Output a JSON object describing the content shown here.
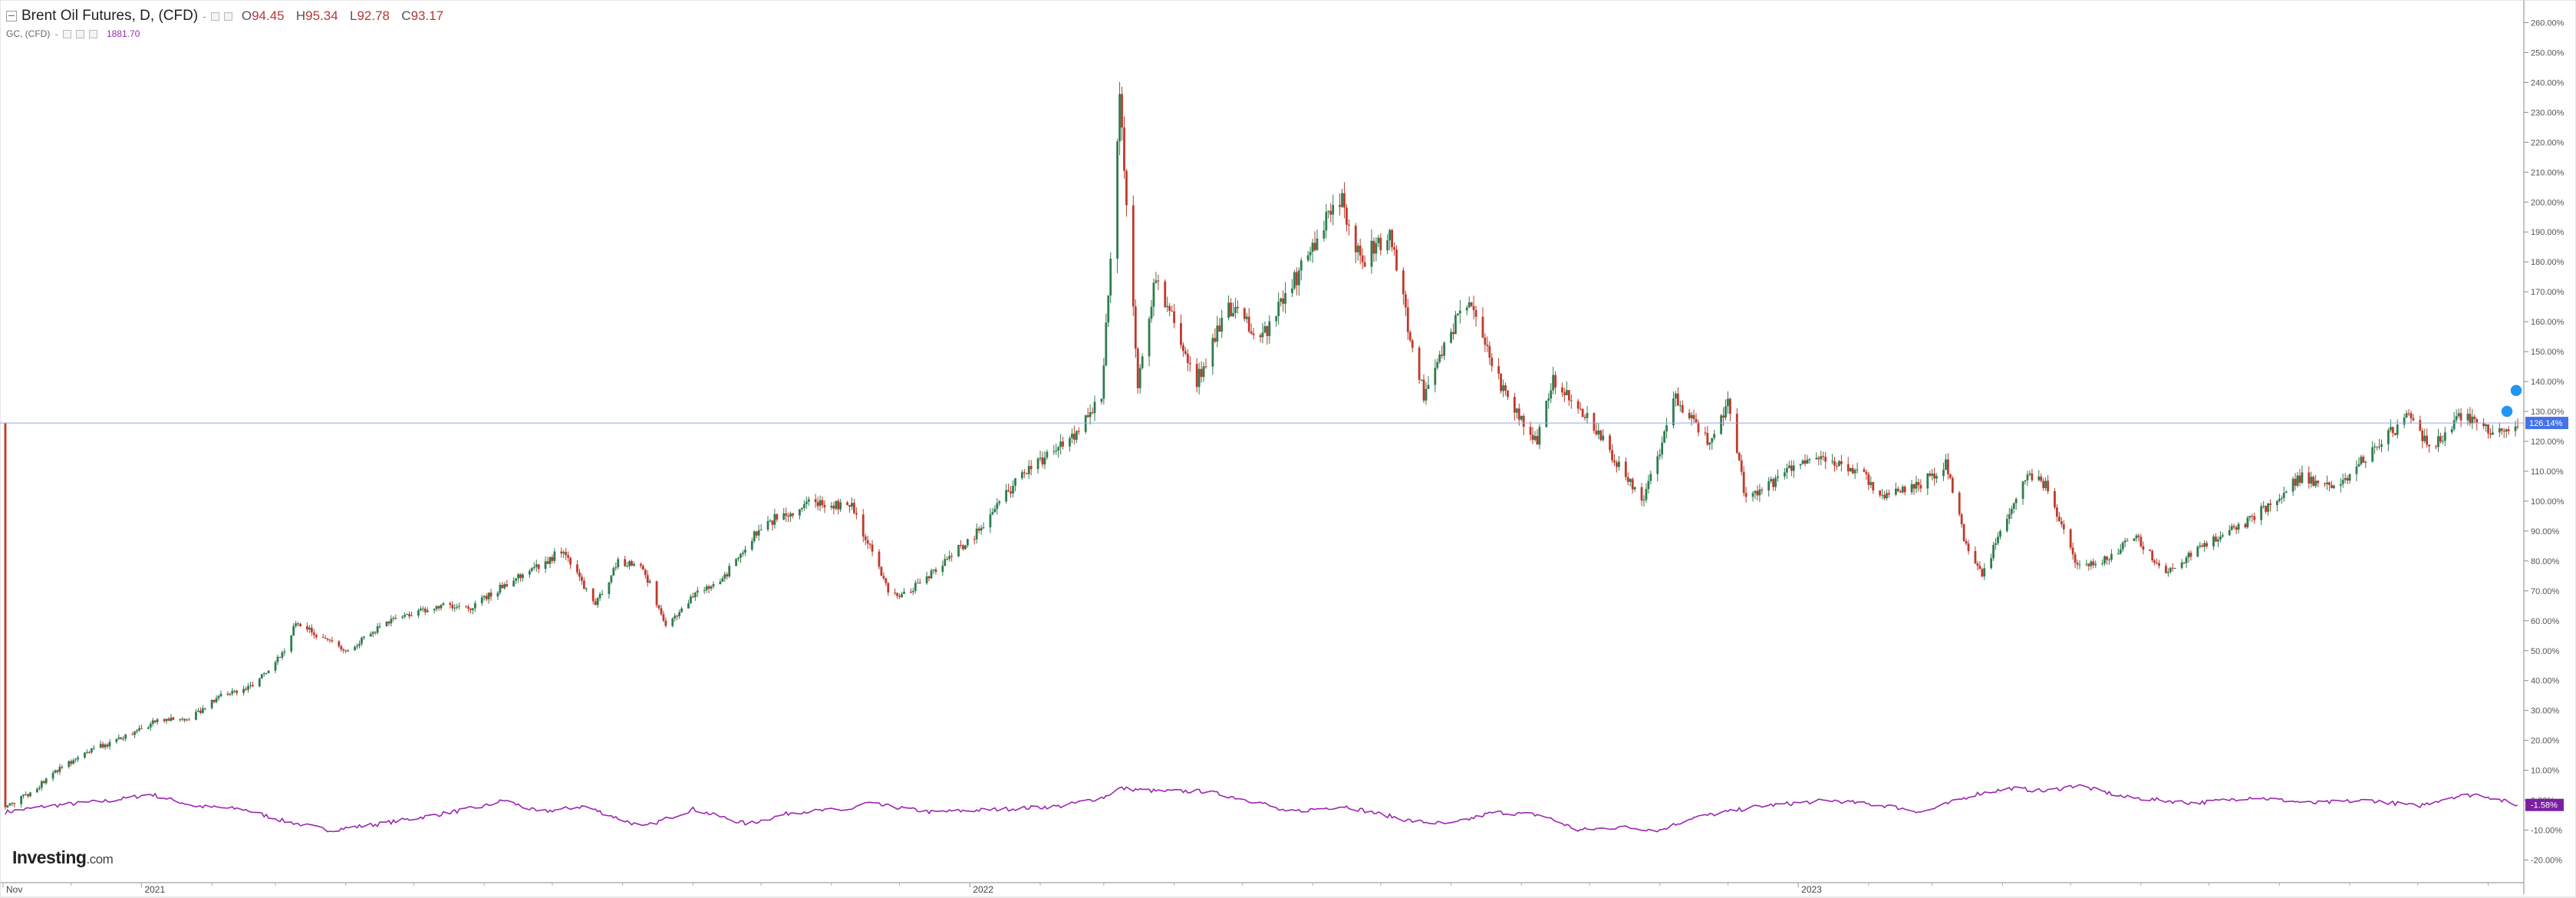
{
  "legend": {
    "main_title": "Brent Oil Futures, D, (CFD)",
    "open_label": "O",
    "open_value": "94.45",
    "high_label": "H",
    "high_value": "95.34",
    "low_label": "L",
    "low_value": "92.78",
    "close_label": "C",
    "close_value": "93.17",
    "compare_symbol": "GC, (CFD)",
    "compare_value": "1881.70",
    "dash": "-"
  },
  "logo": {
    "brand": "Investing",
    "domain": ".com"
  },
  "colors": {
    "up_candle": "#2e7d4f",
    "down_candle": "#c0392b",
    "compare_line": "#9c27b0",
    "crosshair": "#8fa8e8",
    "price_badge": "#4472e8",
    "compare_badge": "#7b1fa2",
    "alert_icon": "#2196f3"
  },
  "chart_data": {
    "type": "candlestick",
    "title": "Brent Oil Futures, D, (CFD)",
    "ylabel": "",
    "xlabel": "",
    "y_unit": "%",
    "ylim": [
      -25,
      265
    ],
    "y_ticks": [
      -20,
      -10,
      0,
      10,
      20,
      30,
      40,
      50,
      60,
      70,
      80,
      90,
      100,
      110,
      120,
      130,
      140,
      150,
      160,
      170,
      180,
      190,
      200,
      210,
      220,
      230,
      240,
      250,
      260
    ],
    "y_tick_labels": [
      "-20.00%",
      "-10.00%",
      "0.00%",
      "10.00%",
      "20.00%",
      "30.00%",
      "40.00%",
      "50.00%",
      "60.00%",
      "70.00%",
      "80.00%",
      "90.00%",
      "100.00%",
      "110.00%",
      "120.00%",
      "130.00%",
      "140.00%",
      "150.00%",
      "160.00%",
      "170.00%",
      "180.00%",
      "190.00%",
      "200.00%",
      "210.00%",
      "220.00%",
      "230.00%",
      "240.00%",
      "250.00%",
      "260.00%"
    ],
    "x_range": [
      "2020-11-01",
      "2023-11-14"
    ],
    "x_labels": [
      {
        "date": "2020-11-01",
        "label": "Nov"
      },
      {
        "date": "2021-01-01",
        "label": "2021"
      },
      {
        "date": "2022-01-01",
        "label": "2022"
      },
      {
        "date": "2023-01-01",
        "label": "2023"
      }
    ],
    "current_level": 126.14,
    "current_level_label": "126.14%",
    "grid": false,
    "series": [
      {
        "name": "Brent Oil Futures, D, (CFD)",
        "kind": "candlestick",
        "points": [
          [
            "2020-11-02",
            -3
          ],
          [
            "2020-11-12",
            2
          ],
          [
            "2020-11-25",
            10
          ],
          [
            "2020-12-10",
            17
          ],
          [
            "2020-12-28",
            22
          ],
          [
            "2021-01-08",
            27
          ],
          [
            "2021-01-22",
            27
          ],
          [
            "2021-02-05",
            35
          ],
          [
            "2021-02-19",
            38
          ],
          [
            "2021-03-05",
            50
          ],
          [
            "2021-03-10",
            60
          ],
          [
            "2021-03-20",
            55
          ],
          [
            "2021-04-01",
            50
          ],
          [
            "2021-04-20",
            60
          ],
          [
            "2021-05-10",
            65
          ],
          [
            "2021-05-25",
            64
          ],
          [
            "2021-06-10",
            72
          ],
          [
            "2021-06-25",
            78
          ],
          [
            "2021-07-06",
            84
          ],
          [
            "2021-07-20",
            65
          ],
          [
            "2021-07-30",
            80
          ],
          [
            "2021-08-10",
            78
          ],
          [
            "2021-08-20",
            58
          ],
          [
            "2021-09-01",
            68
          ],
          [
            "2021-09-15",
            75
          ],
          [
            "2021-10-01",
            92
          ],
          [
            "2021-10-25",
            100
          ],
          [
            "2021-11-10",
            98
          ],
          [
            "2021-11-26",
            70
          ],
          [
            "2021-12-02",
            68
          ],
          [
            "2021-12-15",
            76
          ],
          [
            "2022-01-05",
            90
          ],
          [
            "2022-01-25",
            110
          ],
          [
            "2022-02-14",
            120
          ],
          [
            "2022-02-28",
            135
          ],
          [
            "2022-03-04",
            180
          ],
          [
            "2022-03-08",
            238
          ],
          [
            "2022-03-16",
            140
          ],
          [
            "2022-03-24",
            175
          ],
          [
            "2022-04-11",
            140
          ],
          [
            "2022-04-25",
            165
          ],
          [
            "2022-05-10",
            155
          ],
          [
            "2022-05-25",
            175
          ],
          [
            "2022-06-08",
            195
          ],
          [
            "2022-06-14",
            200
          ],
          [
            "2022-06-22",
            180
          ],
          [
            "2022-07-05",
            190
          ],
          [
            "2022-07-14",
            155
          ],
          [
            "2022-07-20",
            135
          ],
          [
            "2022-08-03",
            160
          ],
          [
            "2022-08-10",
            165
          ],
          [
            "2022-08-25",
            135
          ],
          [
            "2022-09-08",
            120
          ],
          [
            "2022-09-15",
            140
          ],
          [
            "2022-09-28",
            130
          ],
          [
            "2022-10-07",
            120
          ],
          [
            "2022-10-25",
            100
          ],
          [
            "2022-11-08",
            135
          ],
          [
            "2022-11-22",
            120
          ],
          [
            "2022-12-01",
            133
          ],
          [
            "2022-12-09",
            100
          ],
          [
            "2022-12-28",
            110
          ],
          [
            "2023-01-12",
            115
          ],
          [
            "2023-01-27",
            110
          ],
          [
            "2023-02-08",
            102
          ],
          [
            "2023-02-22",
            105
          ],
          [
            "2023-03-07",
            112
          ],
          [
            "2023-03-17",
            82
          ],
          [
            "2023-03-23",
            75
          ],
          [
            "2023-04-03",
            95
          ],
          [
            "2023-04-12",
            110
          ],
          [
            "2023-04-20",
            105
          ],
          [
            "2023-05-04",
            78
          ],
          [
            "2023-05-15",
            80
          ],
          [
            "2023-05-30",
            88
          ],
          [
            "2023-06-12",
            76
          ],
          [
            "2023-06-23",
            82
          ],
          [
            "2023-07-05",
            88
          ],
          [
            "2023-07-20",
            94
          ],
          [
            "2023-08-10",
            108
          ],
          [
            "2023-08-25",
            104
          ],
          [
            "2023-09-12",
            118
          ],
          [
            "2023-09-27",
            128
          ],
          [
            "2023-10-06",
            118
          ],
          [
            "2023-10-20",
            128
          ],
          [
            "2023-11-01",
            124
          ],
          [
            "2023-11-08",
            122
          ],
          [
            "2023-11-14",
            126
          ]
        ]
      },
      {
        "name": "GC, (CFD)",
        "kind": "line",
        "last_value_label": "-1.58%",
        "points": [
          [
            "2020-11-02",
            -4
          ],
          [
            "2020-11-20",
            -2
          ],
          [
            "2020-12-20",
            0
          ],
          [
            "2021-01-05",
            2
          ],
          [
            "2021-01-25",
            -2
          ],
          [
            "2021-02-15",
            -3
          ],
          [
            "2021-03-05",
            -7
          ],
          [
            "2021-03-25",
            -10
          ],
          [
            "2021-04-15",
            -8
          ],
          [
            "2021-05-10",
            -5
          ],
          [
            "2021-06-01",
            -2
          ],
          [
            "2021-06-10",
            0
          ],
          [
            "2021-06-25",
            -4
          ],
          [
            "2021-07-15",
            -2
          ],
          [
            "2021-08-10",
            -9
          ],
          [
            "2021-09-01",
            -3
          ],
          [
            "2021-09-25",
            -8
          ],
          [
            "2021-10-15",
            -4
          ],
          [
            "2021-11-10",
            -3
          ],
          [
            "2021-11-16",
            -1
          ],
          [
            "2021-12-15",
            -4
          ],
          [
            "2022-01-15",
            -3
          ],
          [
            "2022-02-10",
            -2
          ],
          [
            "2022-03-01",
            1
          ],
          [
            "2022-03-08",
            4
          ],
          [
            "2022-03-25",
            3
          ],
          [
            "2022-04-15",
            3
          ],
          [
            "2022-05-10",
            -1
          ],
          [
            "2022-05-20",
            -4
          ],
          [
            "2022-06-15",
            -2
          ],
          [
            "2022-07-15",
            -7
          ],
          [
            "2022-08-01",
            -8
          ],
          [
            "2022-08-20",
            -4
          ],
          [
            "2022-09-10",
            -5
          ],
          [
            "2022-09-26",
            -10
          ],
          [
            "2022-10-15",
            -9
          ],
          [
            "2022-11-01",
            -10
          ],
          [
            "2022-11-15",
            -6
          ],
          [
            "2022-12-15",
            -2
          ],
          [
            "2023-01-15",
            0
          ],
          [
            "2023-02-10",
            -2
          ],
          [
            "2023-02-25",
            -4
          ],
          [
            "2023-03-20",
            2
          ],
          [
            "2023-04-05",
            4
          ],
          [
            "2023-04-20",
            3
          ],
          [
            "2023-05-04",
            5
          ],
          [
            "2023-05-25",
            1
          ],
          [
            "2023-06-25",
            -1
          ],
          [
            "2023-07-20",
            1
          ],
          [
            "2023-08-15",
            -1
          ],
          [
            "2023-09-10",
            0
          ],
          [
            "2023-10-01",
            -2
          ],
          [
            "2023-10-15",
            1
          ],
          [
            "2023-10-28",
            2
          ],
          [
            "2023-11-14",
            -1.58
          ]
        ]
      }
    ]
  }
}
